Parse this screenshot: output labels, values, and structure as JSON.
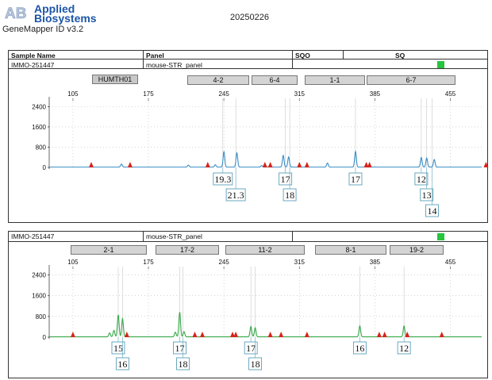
{
  "header": {
    "brand_mark": "AB",
    "brand_line1": "Applied",
    "brand_line2": "Biosystems",
    "app_version": "GeneMapper ID v3.2",
    "date": "20250226",
    "columns": {
      "sample_name": "Sample Name",
      "panel": "Panel",
      "sqo": "SQO",
      "sq": "SQ"
    }
  },
  "colors": {
    "blue_trace": "#3a8ec6",
    "green_trace": "#38a84a",
    "marker": "#d6231a",
    "quality_flag": "#27c43e",
    "brand": "#1d56a6"
  },
  "panels": [
    {
      "sample_name": "IMMO-251447",
      "panel_name": "mouse-STR_panel",
      "bins": [
        "HUMTH01",
        "4-2",
        "6-4",
        "1-1",
        "6-7"
      ]
    },
    {
      "sample_name": "IMMO-251447",
      "panel_name": "mouse-STR_panel",
      "bins": [
        "2-1",
        "17-2",
        "11-2",
        "8-1",
        "19-2"
      ]
    }
  ],
  "chart_data": [
    {
      "type": "line",
      "dye": "blue",
      "x_ticks": [
        105,
        175,
        245,
        315,
        385,
        455
      ],
      "y_ticks": [
        0,
        800,
        1600,
        2400
      ],
      "xlim": [
        83,
        484
      ],
      "ylim": [
        0,
        2600
      ],
      "peaks": [
        {
          "x": 150,
          "y": 120
        },
        {
          "x": 212,
          "y": 80
        },
        {
          "x": 237,
          "y": 90
        },
        {
          "x": 245,
          "y": 600
        },
        {
          "x": 257,
          "y": 560
        },
        {
          "x": 280,
          "y": 60
        },
        {
          "x": 300,
          "y": 460
        },
        {
          "x": 305,
          "y": 400
        },
        {
          "x": 341,
          "y": 160
        },
        {
          "x": 367,
          "y": 620
        },
        {
          "x": 428,
          "y": 380
        },
        {
          "x": 433,
          "y": 360
        },
        {
          "x": 440,
          "y": 300
        }
      ],
      "size_standard_markers": [
        122,
        158,
        230,
        283,
        288,
        315,
        322,
        377,
        380,
        488
      ],
      "allele_calls": [
        {
          "label": "19.3",
          "x": 244,
          "row": 1
        },
        {
          "label": "21.3",
          "x": 256,
          "row": 2
        },
        {
          "label": "17",
          "x": 302,
          "row": 1
        },
        {
          "label": "18",
          "x": 306,
          "row": 2
        },
        {
          "label": "17",
          "x": 367,
          "row": 1
        },
        {
          "label": "12",
          "x": 428,
          "row": 1
        },
        {
          "label": "13",
          "x": 433,
          "row": 2
        },
        {
          "label": "14",
          "x": 438,
          "row": 3
        }
      ]
    },
    {
      "type": "line",
      "dye": "green",
      "x_ticks": [
        105,
        175,
        245,
        315,
        385,
        455
      ],
      "y_ticks": [
        0,
        800,
        1600,
        2400
      ],
      "xlim": [
        83,
        484
      ],
      "ylim": [
        0,
        2600
      ],
      "peaks": [
        {
          "x": 139,
          "y": 150
        },
        {
          "x": 143,
          "y": 250
        },
        {
          "x": 147,
          "y": 850
        },
        {
          "x": 151,
          "y": 700
        },
        {
          "x": 200,
          "y": 180
        },
        {
          "x": 204,
          "y": 950
        },
        {
          "x": 208,
          "y": 200
        },
        {
          "x": 270,
          "y": 400
        },
        {
          "x": 274,
          "y": 350
        },
        {
          "x": 371,
          "y": 420
        },
        {
          "x": 412,
          "y": 420
        }
      ],
      "size_standard_markers": [
        105,
        155,
        218,
        225,
        253,
        256,
        288,
        298,
        322,
        389,
        394,
        415,
        447
      ],
      "allele_calls": [
        {
          "label": "15",
          "x": 147,
          "row": 1
        },
        {
          "label": "16",
          "x": 151,
          "row": 2
        },
        {
          "label": "17",
          "x": 204,
          "row": 1
        },
        {
          "label": "18",
          "x": 207,
          "row": 2
        },
        {
          "label": "17",
          "x": 270,
          "row": 1
        },
        {
          "label": "18",
          "x": 274,
          "row": 2
        },
        {
          "label": "16",
          "x": 371,
          "row": 1
        },
        {
          "label": "12",
          "x": 412,
          "row": 1
        }
      ]
    }
  ]
}
